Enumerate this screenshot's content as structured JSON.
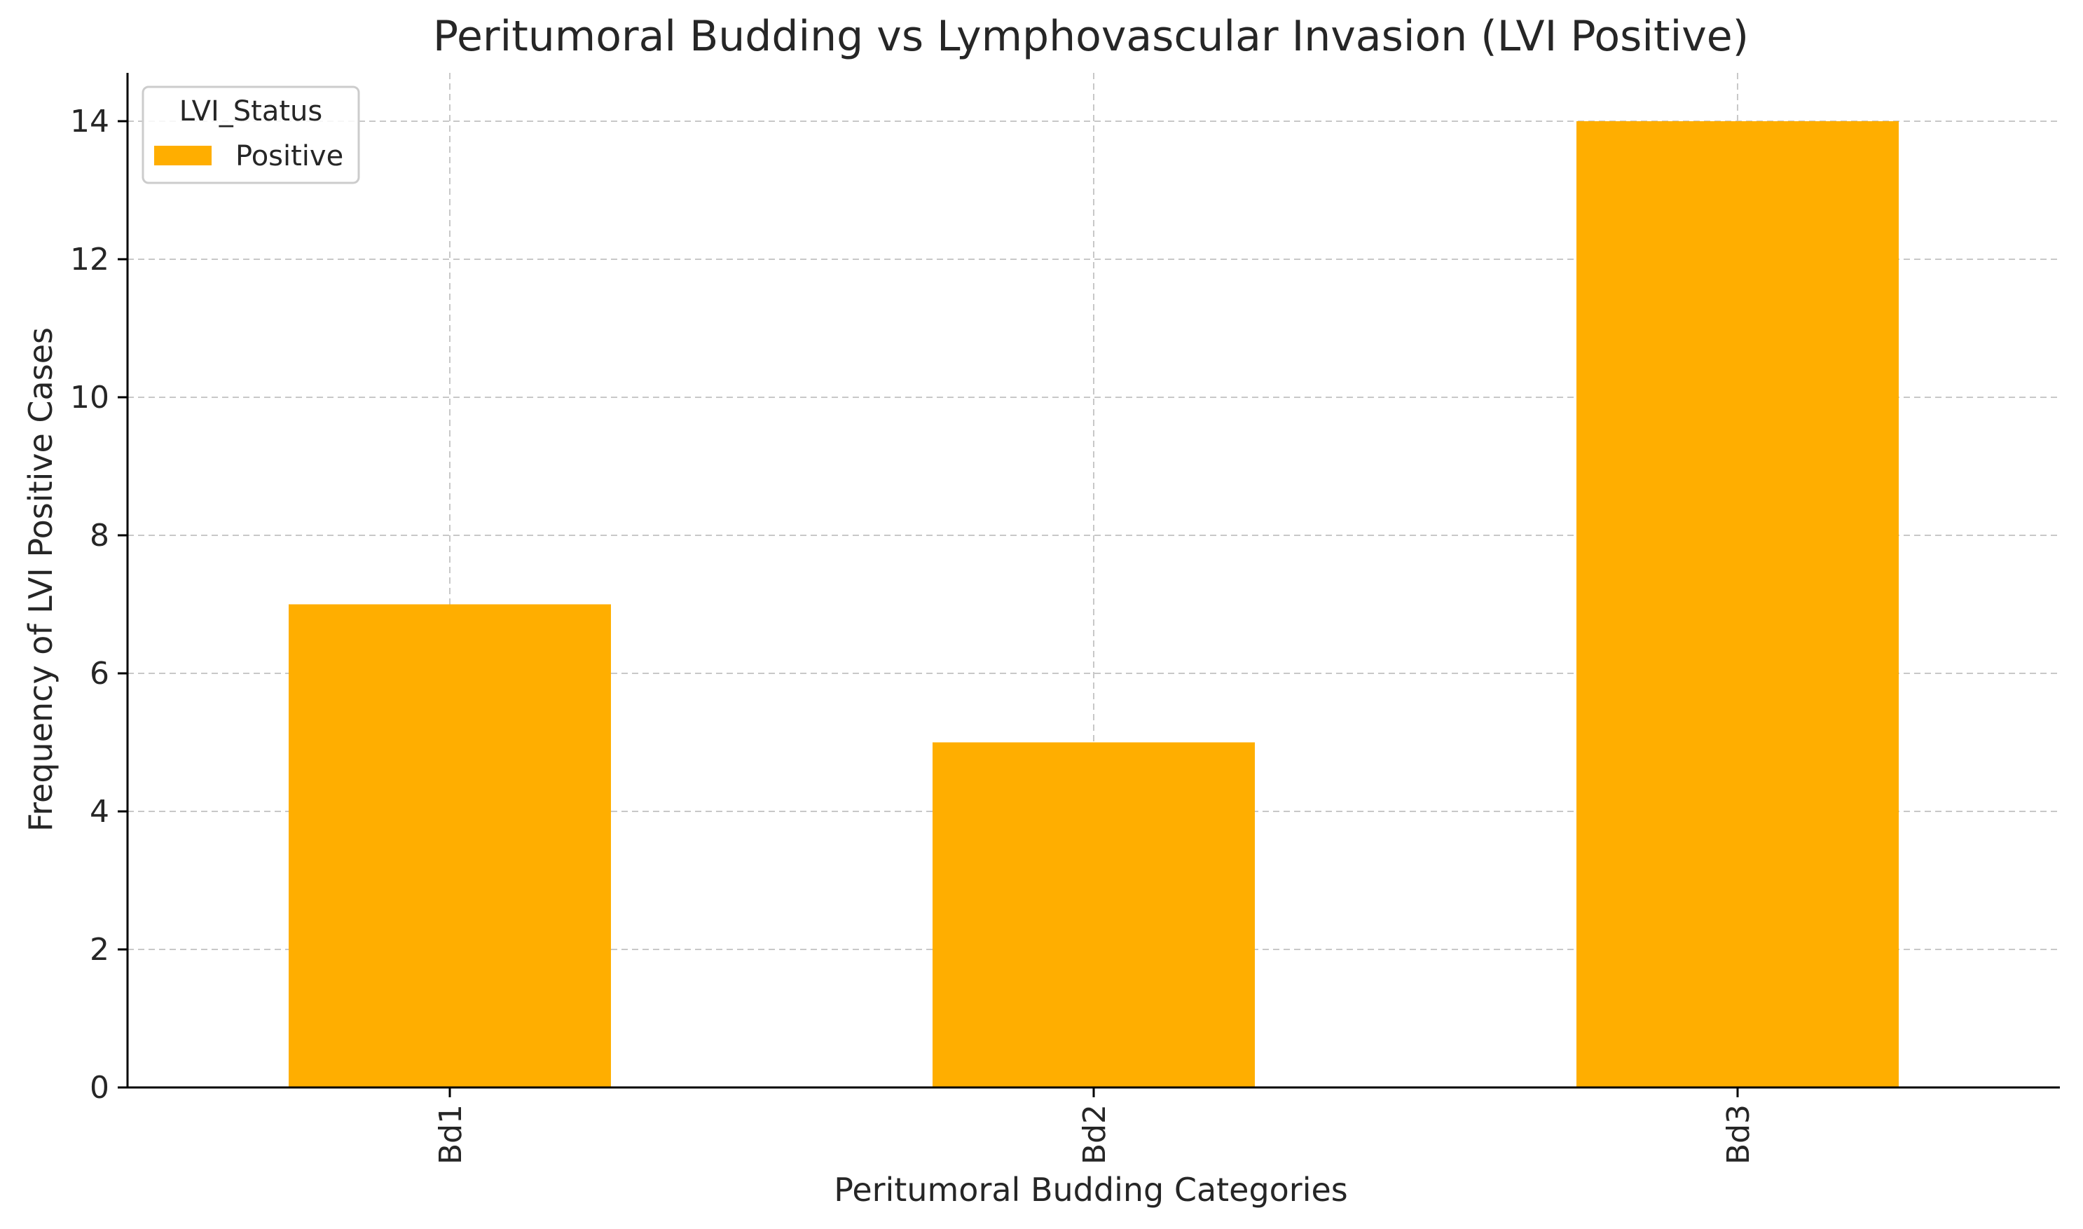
{
  "chart_data": {
    "type": "bar",
    "title": "Peritumoral Budding vs Lymphovascular Invasion (LVI Positive)",
    "xlabel": "Peritumoral Budding Categories",
    "ylabel": "Frequency of LVI Positive Cases",
    "categories": [
      "Bd1",
      "Bd2",
      "Bd3"
    ],
    "series": [
      {
        "name": "Positive",
        "values": [
          7,
          5,
          14
        ],
        "color": "#FFAE00"
      }
    ],
    "ylim": [
      0,
      14.7
    ],
    "yticks": [
      0,
      2,
      4,
      6,
      8,
      10,
      12,
      14
    ],
    "grid": true,
    "legend": {
      "title": "LVI_Status",
      "placement": "top-left"
    },
    "xtick_rotation": "vertical"
  }
}
